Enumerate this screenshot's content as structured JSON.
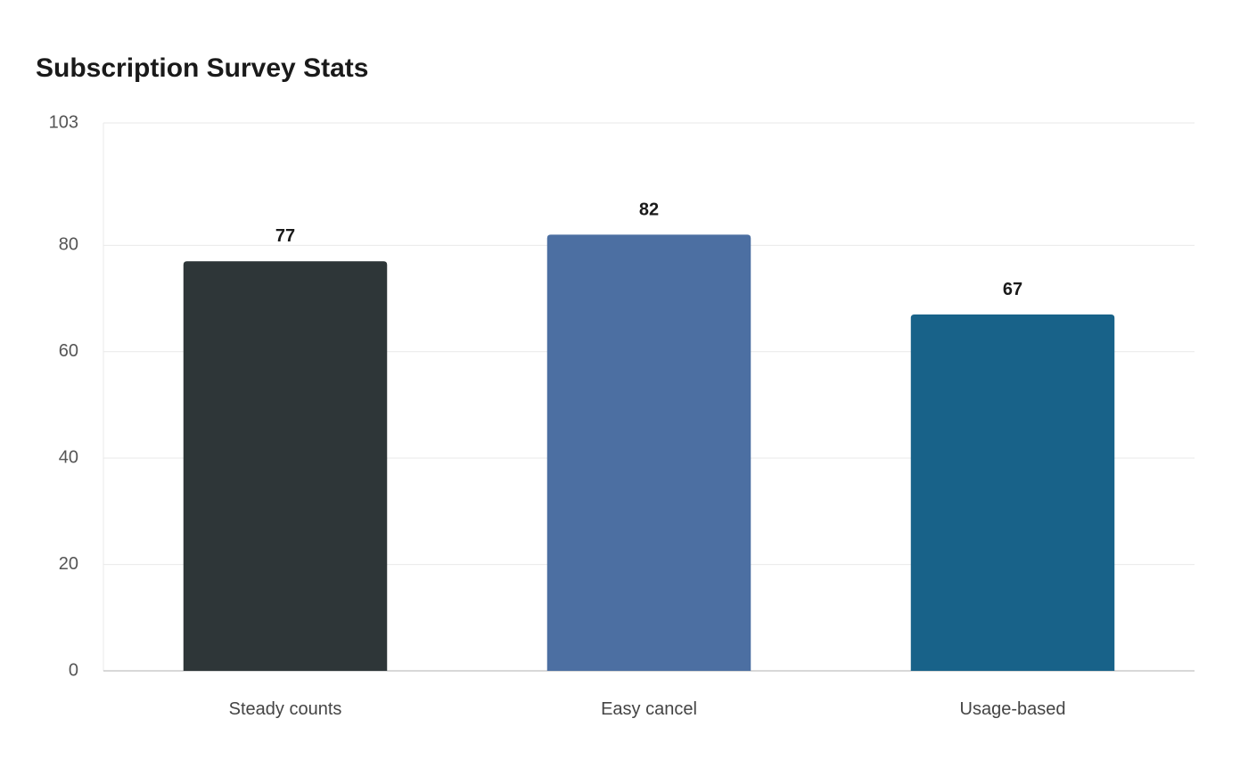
{
  "chart_data": {
    "type": "bar",
    "title": "Subscription Survey Stats",
    "categories": [
      "Steady counts",
      "Easy cancel",
      "Usage-based"
    ],
    "values": [
      77,
      82,
      67
    ],
    "colors": [
      "#2e3638",
      "#4c6fa2",
      "#186289"
    ],
    "xlabel": "",
    "ylabel": "",
    "ylim": [
      0,
      103
    ],
    "yticks": [
      0,
      20,
      40,
      60,
      80,
      103
    ],
    "grid": true,
    "legend": "none",
    "show_value_labels": true
  },
  "style": {
    "grid_color": "#e9e9e9",
    "axis_color": "#cccccc"
  }
}
